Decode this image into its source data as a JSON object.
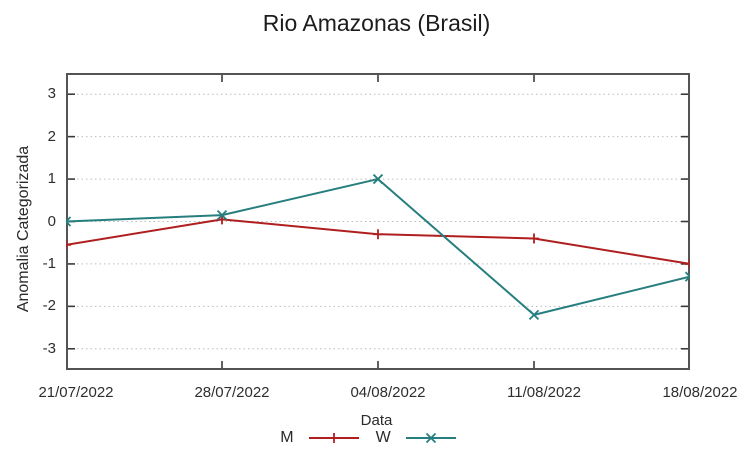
{
  "chart_data": {
    "type": "line",
    "title": "Rio Amazonas (Brasil)",
    "xlabel": "Data",
    "ylabel": "Anomalia Categorizada",
    "x_tick_labels": [
      "21/07/2022",
      "28/07/2022",
      "04/08/2022",
      "11/08/2022",
      "18/08/2022"
    ],
    "y_ticks": [
      -3,
      -2,
      -1,
      0,
      1,
      2,
      3
    ],
    "y_tick_labels": [
      "-3",
      "-2",
      "-1",
      "0",
      "1",
      "2",
      "3"
    ],
    "ylim": [
      -3.5,
      3.5
    ],
    "grid": true,
    "legend_position": "below-xlabel",
    "series": [
      {
        "name": "M",
        "marker": "plus",
        "color": "#b01f1f",
        "values": [
          -0.55,
          0.05,
          -0.3,
          -0.4,
          -1.0
        ]
      },
      {
        "name": "W",
        "marker": "cross",
        "color": "#267e7e",
        "values": [
          0.0,
          0.15,
          1.0,
          -2.2,
          -1.3
        ]
      }
    ],
    "colors": {
      "frame": "#545454",
      "grid": "#bcbcbc",
      "tick": "#3a3a3a",
      "text": "#2a2a2a",
      "background": "#ffffff"
    }
  }
}
